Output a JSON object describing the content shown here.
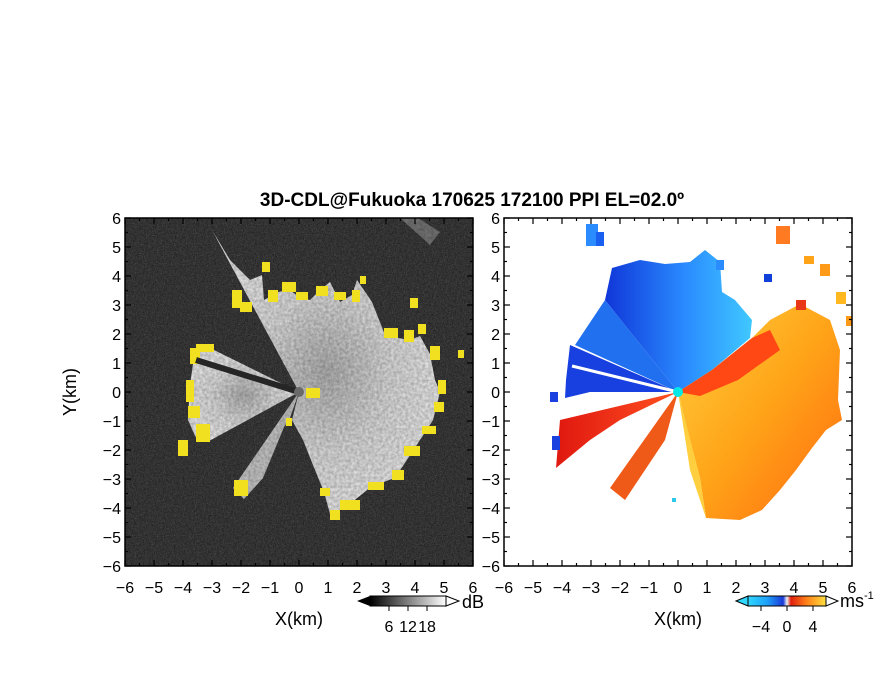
{
  "chart_data": [
    {
      "type": "heatmap",
      "title": "3D-CDL@Fukuoka 170625 172100 PPI EL=02.0º",
      "panel": "reflectivity",
      "xlabel": "X(km)",
      "ylabel": "Y(km)",
      "xlim": [
        -6,
        6
      ],
      "ylim": [
        -6,
        6
      ],
      "x_ticks": [
        "-6",
        "-5",
        "-4",
        "-3",
        "-2",
        "-1",
        "0",
        "1",
        "2",
        "3",
        "4",
        "5",
        "6"
      ],
      "y_ticks": [
        "6",
        "5",
        "4",
        "3",
        "2",
        "1",
        "0",
        "-1",
        "-2",
        "-3",
        "-4",
        "-5",
        "-6"
      ],
      "colorbar": {
        "unit": "dB",
        "ticks": [
          "6",
          "12",
          "18"
        ],
        "range": [
          0,
          24
        ]
      },
      "colors": {
        "background": "#1c1c1c",
        "echo_low": "#9a9a9a",
        "echo_high": "#f2f2f2",
        "flag": "#f0e020"
      }
    },
    {
      "type": "heatmap",
      "panel": "radial-velocity",
      "xlabel": "X(km)",
      "xlim": [
        -6,
        6
      ],
      "ylim": [
        -6,
        6
      ],
      "x_ticks": [
        "-6",
        "-5",
        "-4",
        "-3",
        "-2",
        "-1",
        "0",
        "1",
        "2",
        "3",
        "4",
        "5",
        "6"
      ],
      "y_ticks": [
        "6",
        "5",
        "4",
        "3",
        "2",
        "1",
        "0",
        "-1",
        "-2",
        "-3",
        "-4",
        "-5",
        "-6"
      ],
      "colorbar": {
        "unit": "ms",
        "unit_exp": "-1",
        "ticks": [
          "-4",
          "0",
          "4"
        ],
        "range": [
          -6,
          6
        ]
      },
      "colors": {
        "toward": "#1a4fe0",
        "toward_weak": "#1ea8f0",
        "away": "#e83818",
        "away_weak": "#f8b018",
        "radar": "#00e8e8"
      }
    }
  ]
}
